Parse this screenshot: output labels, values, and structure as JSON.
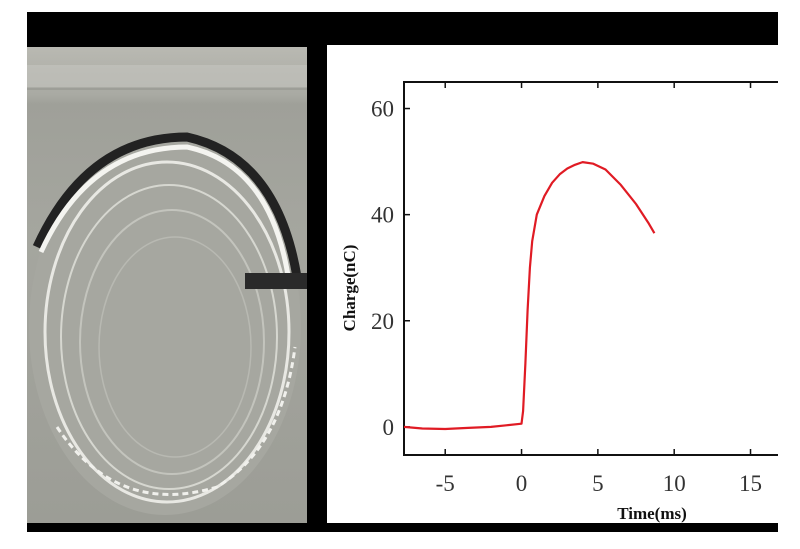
{
  "photo": {
    "icon": "water-ripple-photo",
    "description_label": ""
  },
  "chart_data": {
    "type": "line",
    "title": "",
    "xlabel": "Time(ms)",
    "ylabel": "Charge(nC)",
    "xlim": [
      -7.7,
      16.8
    ],
    "ylim": [
      -5.3,
      65
    ],
    "xticks": [
      -5,
      0,
      5,
      10,
      15
    ],
    "yticks": [
      0,
      20,
      40,
      60
    ],
    "grid": false,
    "series": [
      {
        "color": "#e01b24",
        "x": [
          -7.7,
          -6.5,
          -5,
          -3.5,
          -2,
          -1,
          0,
          0.1,
          0.25,
          0.4,
          0.55,
          0.7,
          1.0,
          1.5,
          2.0,
          2.5,
          3.0,
          3.5,
          4.0,
          4.7,
          5.5,
          6.5,
          7.5,
          8.3,
          8.7
        ],
        "y": [
          0,
          -0.3,
          -0.4,
          -0.2,
          0,
          0.3,
          0.6,
          3,
          12,
          22,
          30,
          35,
          40,
          43.5,
          46,
          47.6,
          48.7,
          49.4,
          49.9,
          49.6,
          48.5,
          45.6,
          42,
          38.5,
          36.5
        ]
      }
    ]
  }
}
